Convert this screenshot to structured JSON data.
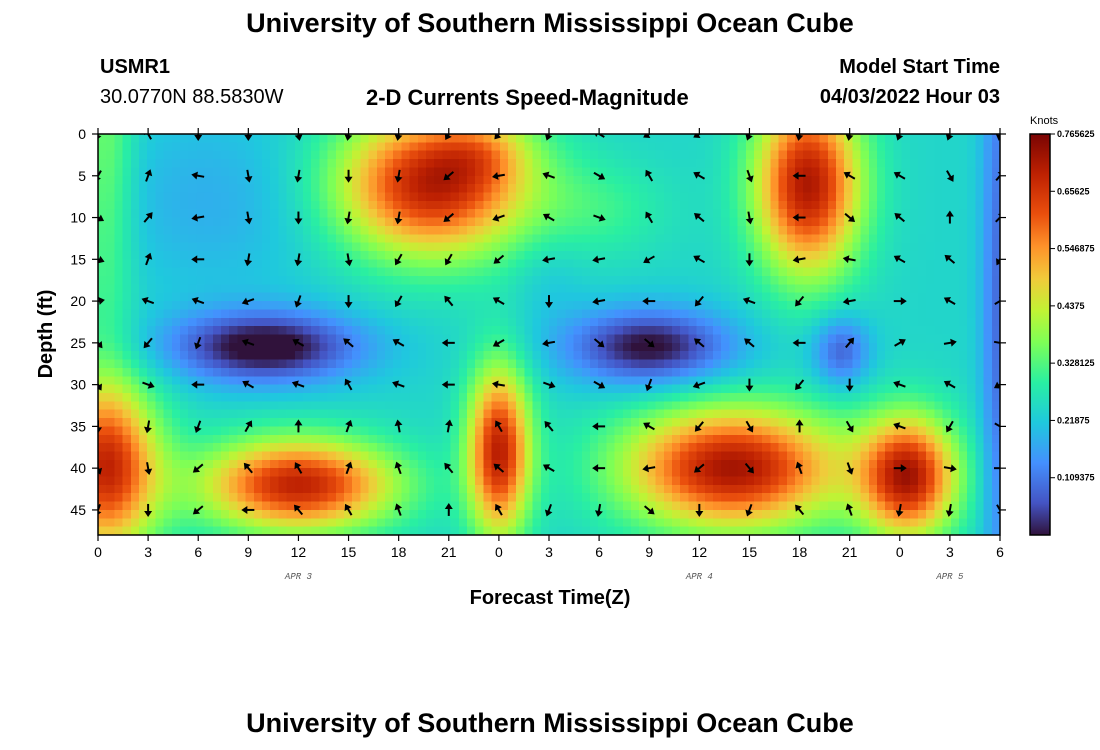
{
  "header": {
    "title": "University of Southern Mississippi Ocean Cube",
    "station_id": "USMR1",
    "coordinates": "30.0770N  88.5830W",
    "subtitle": "2-D Currents Speed-Magnitude",
    "model_start_label": "Model Start Time",
    "model_start_value": "04/03/2022 Hour 03"
  },
  "footer": {
    "title": "University of Southern Mississippi Ocean Cube"
  },
  "chart_data": {
    "type": "heatmap",
    "title": "2-D Currents Speed-Magnitude",
    "xlabel": "Forecast Time(Z)",
    "ylabel": "Depth (ft)",
    "x_tick_labels": [
      "0",
      "3",
      "6",
      "9",
      "12",
      "15",
      "18",
      "21",
      "0",
      "3",
      "6",
      "9",
      "12",
      "15",
      "18",
      "21",
      "0",
      "3",
      "6"
    ],
    "x_range_hours": [
      0,
      54
    ],
    "y_ticks": [
      0,
      5,
      10,
      15,
      20,
      25,
      30,
      35,
      40,
      45
    ],
    "y_range_ft": [
      0,
      48
    ],
    "date_labels": [
      {
        "label": "APR 3",
        "hour": 12
      },
      {
        "label": "APR 4",
        "hour": 36
      },
      {
        "label": "APR 5",
        "hour": 51
      }
    ],
    "colorbar": {
      "units": "Knots",
      "min": 0.0,
      "max": 0.765625,
      "tick_labels": [
        "0.765625",
        "0.65625",
        "0.546875",
        "0.4375",
        "0.328125",
        "0.21875",
        "0.109375"
      ],
      "tick_values": [
        0.765625,
        0.65625,
        0.546875,
        0.4375,
        0.328125,
        0.21875,
        0.109375
      ]
    },
    "speed_field_blobs": [
      {
        "hour": 0.5,
        "depth": 2,
        "sh": 1.2,
        "sd": 18,
        "amp": 0.12
      },
      {
        "hour": 7,
        "depth": 8,
        "sh": 5,
        "sd": 8,
        "amp": -0.06
      },
      {
        "hour": 20,
        "depth": 6,
        "sh": 4,
        "sd": 6,
        "amp": 0.46
      },
      {
        "hour": 23,
        "depth": 2,
        "sh": 2,
        "sd": 3,
        "amp": 0.1
      },
      {
        "hour": 42.5,
        "depth": 6,
        "sh": 2.2,
        "sd": 7.5,
        "amp": 0.47
      },
      {
        "hour": 30,
        "depth": 9,
        "sh": 3,
        "sd": 4,
        "amp": 0.06
      },
      {
        "hour": 10,
        "depth": 25.5,
        "sh": 4,
        "sd": 3,
        "amp": -0.27
      },
      {
        "hour": 33,
        "depth": 25.5,
        "sh": 3.5,
        "sd": 3.2,
        "amp": -0.25
      },
      {
        "hour": 44.5,
        "depth": 26,
        "sh": 1.2,
        "sd": 3,
        "amp": -0.16
      },
      {
        "hour": 0.5,
        "depth": 40,
        "sh": 2.2,
        "sd": 7,
        "amp": 0.43
      },
      {
        "hour": 12,
        "depth": 42,
        "sh": 4,
        "sd": 3.8,
        "amp": 0.45
      },
      {
        "hour": 24,
        "depth": 38,
        "sh": 1.3,
        "sd": 7,
        "amp": 0.45
      },
      {
        "hour": 38,
        "depth": 40,
        "sh": 4.5,
        "sd": 5,
        "amp": 0.48
      },
      {
        "hour": 48.5,
        "depth": 41,
        "sh": 2,
        "sd": 5,
        "amp": 0.46
      },
      {
        "hour": 54,
        "depth": 20,
        "sh": 0.8,
        "sd": 30,
        "amp": -0.15
      },
      {
        "hour": 27,
        "depth": 17,
        "sh": 1.5,
        "sd": 4,
        "amp": -0.03
      }
    ],
    "speed_field_baseline": 0.24,
    "vector_hours": [
      0,
      3,
      6,
      9,
      12,
      15,
      18,
      21,
      24,
      27,
      30,
      33,
      36,
      39,
      42,
      45,
      48,
      51,
      54
    ],
    "vector_depths": [
      0,
      5,
      10,
      15,
      20,
      25,
      30,
      35,
      40,
      45
    ],
    "vector_directions_deg": [
      [
        200,
        330,
        180,
        180,
        170,
        190,
        190,
        210,
        220,
        200,
        300,
        240,
        240,
        200,
        190,
        190,
        200,
        200,
        190
      ],
      [
        210,
        20,
        280,
        170,
        190,
        180,
        190,
        230,
        260,
        290,
        120,
        330,
        300,
        160,
        270,
        300,
        300,
        150,
        40
      ],
      [
        120,
        40,
        260,
        170,
        180,
        190,
        190,
        230,
        250,
        300,
        110,
        330,
        310,
        170,
        270,
        130,
        310,
        0,
        45
      ],
      [
        110,
        20,
        270,
        190,
        190,
        170,
        210,
        210,
        230,
        260,
        260,
        240,
        300,
        180,
        260,
        280,
        300,
        310,
        210
      ],
      [
        80,
        290,
        290,
        250,
        200,
        180,
        210,
        320,
        300,
        180,
        260,
        270,
        220,
        290,
        220,
        260,
        90,
        300,
        60
      ],
      [
        140,
        220,
        200,
        290,
        300,
        310,
        300,
        270,
        240,
        260,
        130,
        130,
        310,
        310,
        270,
        40,
        60,
        80,
        100
      ],
      [
        150,
        110,
        270,
        300,
        290,
        330,
        290,
        270,
        280,
        110,
        120,
        200,
        250,
        180,
        220,
        180,
        290,
        300,
        240
      ],
      [
        180,
        190,
        200,
        30,
        0,
        20,
        350,
        10,
        330,
        320,
        270,
        300,
        220,
        150,
        0,
        150,
        290,
        210,
        120
      ],
      [
        160,
        170,
        230,
        320,
        330,
        20,
        340,
        320,
        310,
        300,
        270,
        260,
        230,
        140,
        340,
        160,
        90,
        100,
        90
      ],
      [
        200,
        180,
        230,
        270,
        320,
        330,
        340,
        360,
        330,
        200,
        190,
        130,
        180,
        200,
        320,
        340,
        190,
        190,
        150
      ]
    ]
  }
}
